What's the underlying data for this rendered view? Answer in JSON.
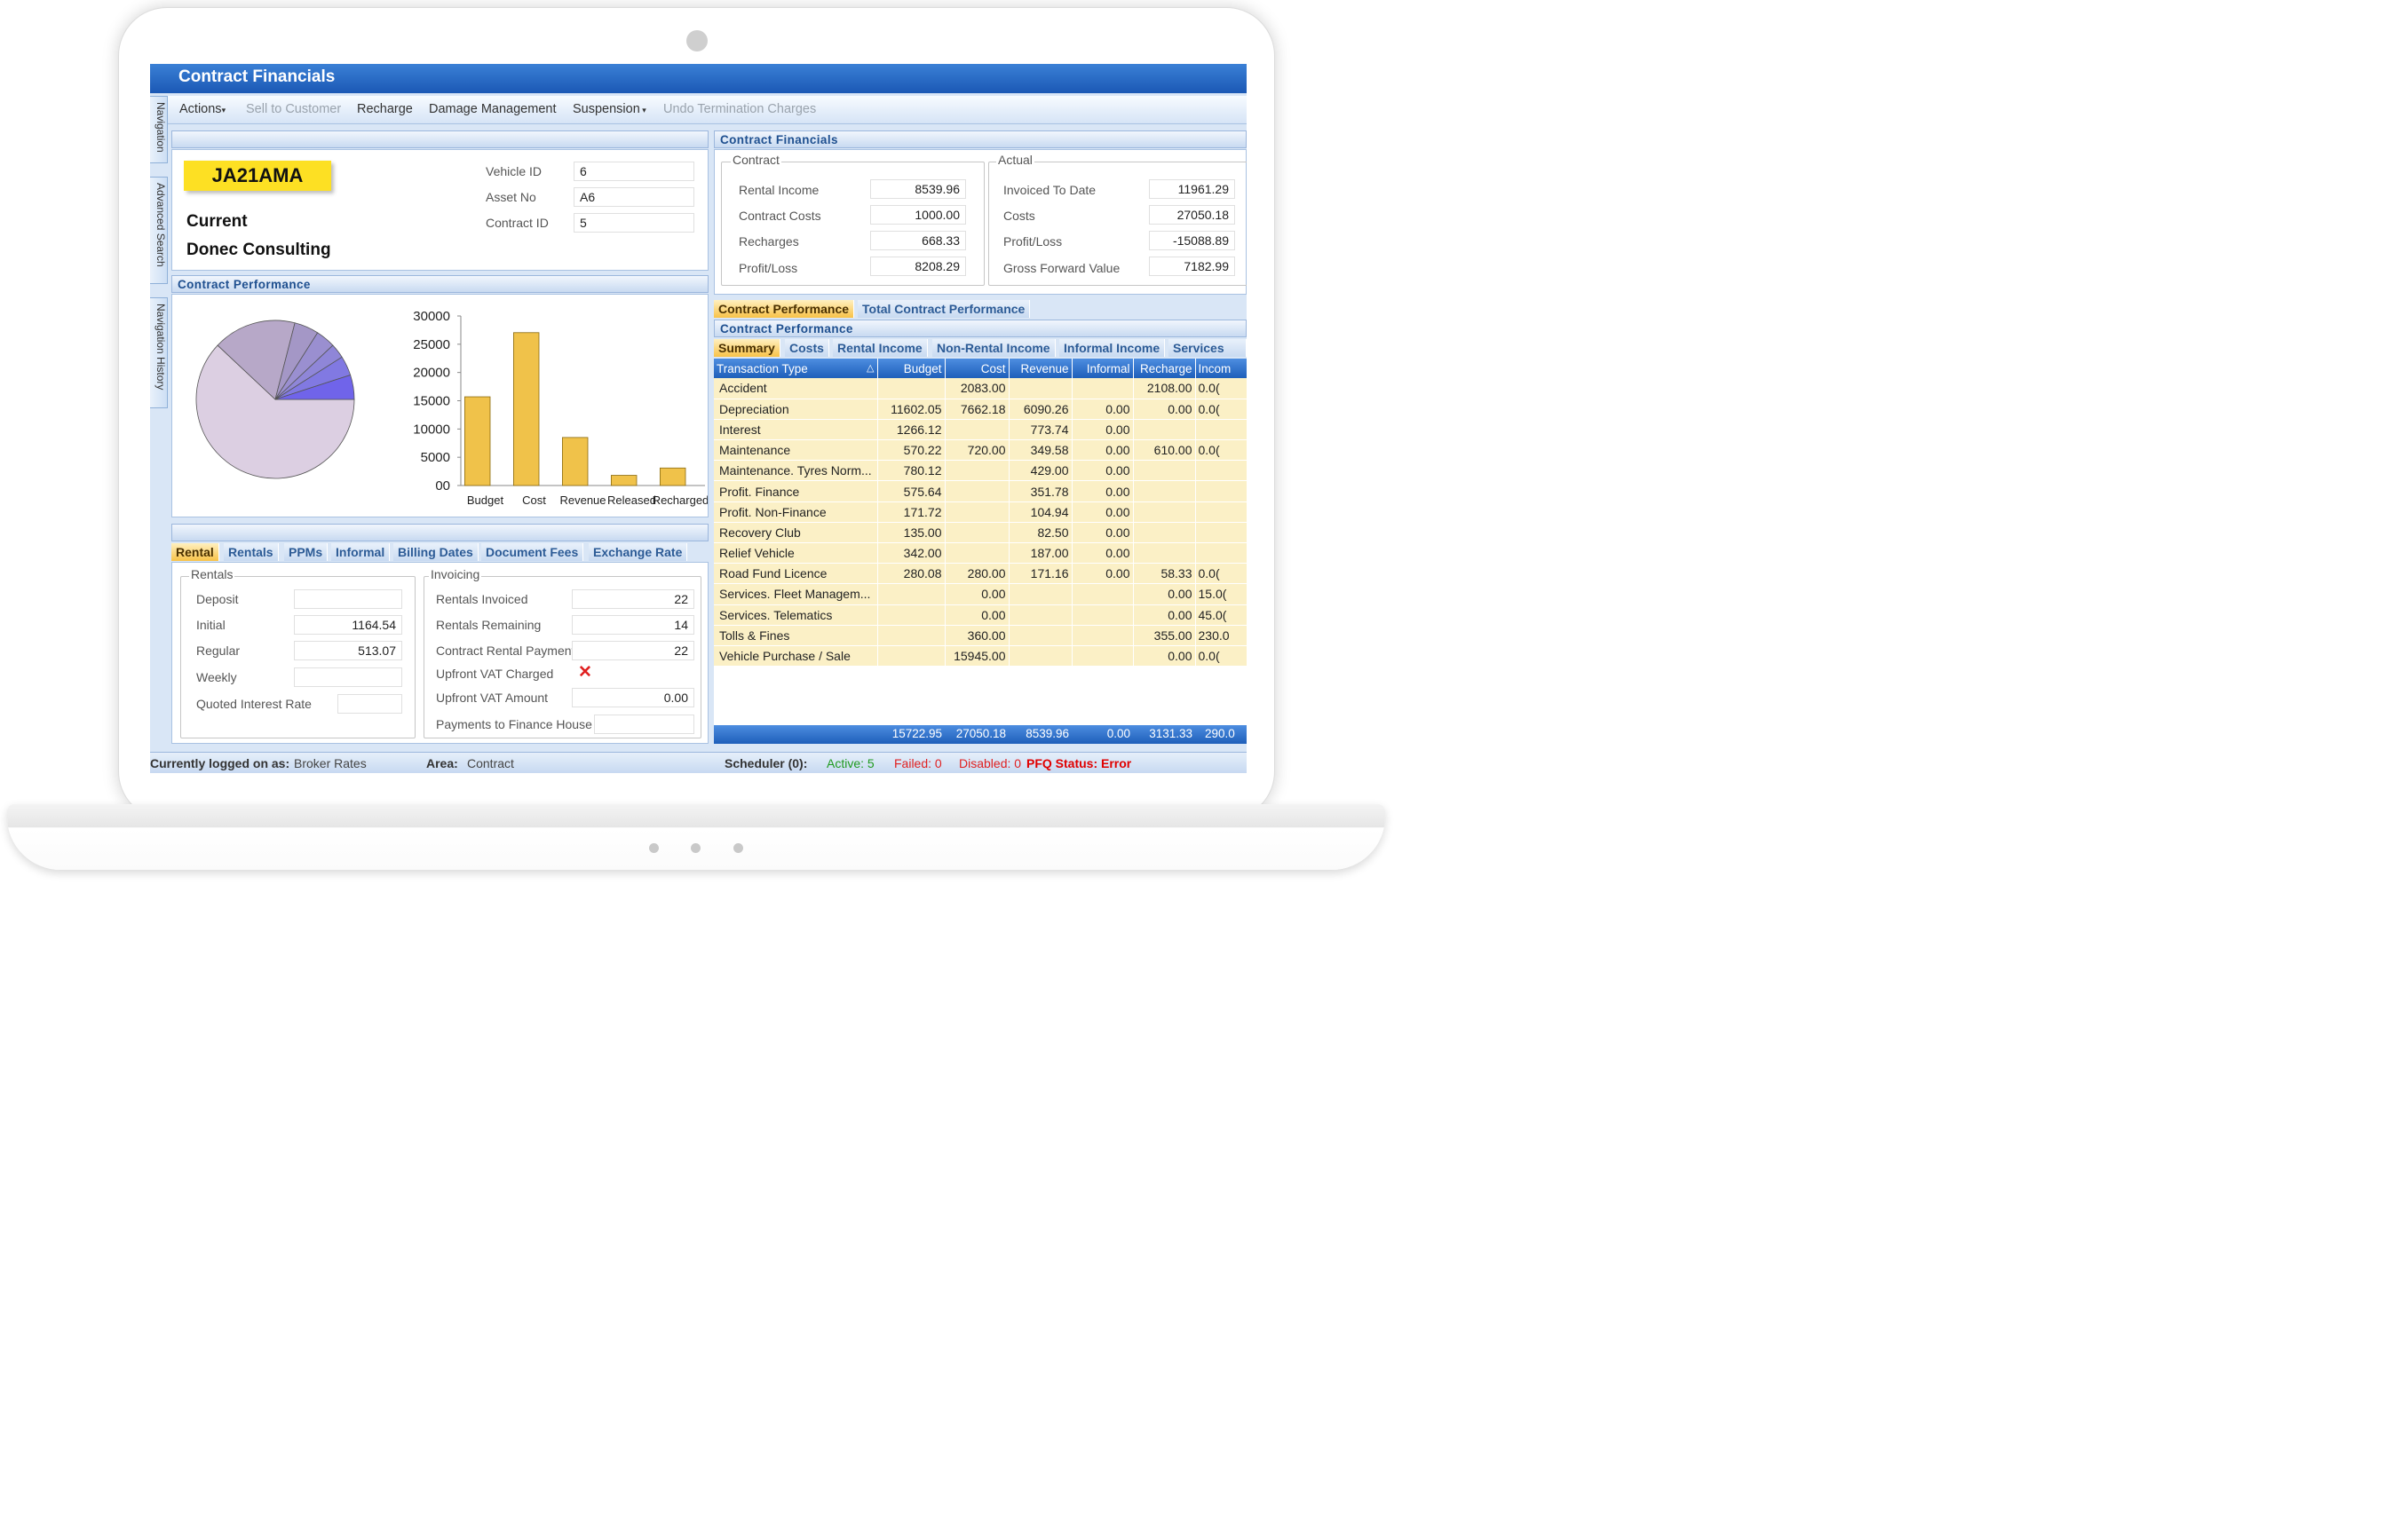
{
  "window": {
    "title": "Contract Financials"
  },
  "menu": {
    "actions": "Actions",
    "sell_to_customer": "Sell to Customer",
    "recharge": "Recharge",
    "damage_management": "Damage Management",
    "suspension": "Suspension",
    "undo_termination": "Undo Termination Charges"
  },
  "side_tabs": [
    "Navigation",
    "Advanced Search",
    "Navigation History"
  ],
  "vehicle": {
    "registration": "JA21AMA",
    "status": "Current",
    "customer": "Donec Consulting",
    "fields": [
      {
        "label": "Vehicle ID",
        "value": "6"
      },
      {
        "label": "Asset No",
        "value": "A6"
      },
      {
        "label": "Contract ID",
        "value": "5"
      }
    ]
  },
  "contract_financials": {
    "header": "Contract Financials",
    "contract": {
      "title": "Contract",
      "rows": [
        {
          "label": "Rental Income",
          "value": "8539.96"
        },
        {
          "label": "Contract Costs",
          "value": "1000.00"
        },
        {
          "label": "Recharges",
          "value": "668.33"
        },
        {
          "label": "Profit/Loss",
          "value": "8208.29"
        }
      ]
    },
    "actual": {
      "title": "Actual",
      "rows": [
        {
          "label": "Invoiced To Date",
          "value": "11961.29"
        },
        {
          "label": "Costs",
          "value": "27050.18"
        },
        {
          "label": "Profit/Loss",
          "value": "-15088.89"
        },
        {
          "label": "Gross Forward Value",
          "value": "7182.99"
        }
      ]
    }
  },
  "performance_panel": {
    "header": "Contract Performance"
  },
  "chart_data": [
    {
      "type": "pie",
      "values": [
        62,
        17,
        5,
        4,
        3,
        4,
        5
      ],
      "colors": [
        "#dccfe2",
        "#b7a8c8",
        "#a497c6",
        "#9a8fd0",
        "#8f86d8",
        "#8179e2",
        "#7064ea"
      ]
    },
    {
      "type": "bar",
      "categories": [
        "Budget",
        "Cost",
        "Revenue",
        "Released",
        "Recharged"
      ],
      "values": [
        15700,
        27050,
        8500,
        1800,
        3100
      ],
      "ylim": [
        0,
        30000
      ],
      "yticks": [
        "00",
        "5000",
        "10000",
        "15000",
        "20000",
        "25000",
        "30000"
      ],
      "color": "#f0c24a"
    }
  ],
  "rental_tabs": [
    "Rental",
    "Rentals",
    "PPMs",
    "Informal",
    "Billing Dates",
    "Document Fees",
    "Exchange Rate"
  ],
  "rentals_group": {
    "title": "Rentals",
    "rows": [
      {
        "label": "Deposit",
        "value": ""
      },
      {
        "label": "Initial",
        "value": "1164.54"
      },
      {
        "label": "Regular",
        "value": "513.07"
      },
      {
        "label": "Weekly",
        "value": ""
      },
      {
        "label": "Quoted Interest Rate",
        "value": ""
      }
    ]
  },
  "invoicing_group": {
    "title": "Invoicing",
    "rows": [
      {
        "label": "Rentals Invoiced",
        "value": "22"
      },
      {
        "label": "Rentals Remaining",
        "value": "14"
      },
      {
        "label": "Contract Rental Payment",
        "value": "22"
      },
      {
        "label": "Upfront VAT Charged",
        "value": ""
      },
      {
        "label": "Upfront VAT Amount",
        "value": "0.00"
      },
      {
        "label": "Payments to Finance House",
        "value": ""
      }
    ]
  },
  "perf_tabs": [
    "Contract Performance",
    "Total Contract Performance"
  ],
  "perf_subheader": "Contract Performance",
  "summary_tabs": [
    "Summary",
    "Costs",
    "Rental Income",
    "Non-Rental Income",
    "Informal Income",
    "Services"
  ],
  "grid": {
    "columns": [
      "Transaction Type",
      "Budget",
      "Cost",
      "Revenue",
      "Informal",
      "Recharge",
      "Incom"
    ],
    "rows": [
      [
        "Accident",
        "",
        "2083.00",
        "",
        "",
        "2108.00",
        "0.0("
      ],
      [
        "Depreciation",
        "11602.05",
        "7662.18",
        "6090.26",
        "0.00",
        "0.00",
        "0.0("
      ],
      [
        "Interest",
        "1266.12",
        "",
        "773.74",
        "0.00",
        "",
        ""
      ],
      [
        "Maintenance",
        "570.22",
        "720.00",
        "349.58",
        "0.00",
        "610.00",
        "0.0("
      ],
      [
        "Maintenance. Tyres Norm...",
        "780.12",
        "",
        "429.00",
        "0.00",
        "",
        ""
      ],
      [
        "Profit. Finance",
        "575.64",
        "",
        "351.78",
        "0.00",
        "",
        ""
      ],
      [
        "Profit. Non-Finance",
        "171.72",
        "",
        "104.94",
        "0.00",
        "",
        ""
      ],
      [
        "Recovery Club",
        "135.00",
        "",
        "82.50",
        "0.00",
        "",
        ""
      ],
      [
        "Relief Vehicle",
        "342.00",
        "",
        "187.00",
        "0.00",
        "",
        ""
      ],
      [
        "Road Fund Licence",
        "280.08",
        "280.00",
        "171.16",
        "0.00",
        "58.33",
        "0.0("
      ],
      [
        "Services. Fleet Managem...",
        "",
        "0.00",
        "",
        "",
        "0.00",
        "15.0("
      ],
      [
        "Services. Telematics",
        "",
        "0.00",
        "",
        "",
        "0.00",
        "45.0("
      ],
      [
        "Tolls & Fines",
        "",
        "360.00",
        "",
        "",
        "355.00",
        "230.0"
      ],
      [
        "Vehicle Purchase / Sale",
        "",
        "15945.00",
        "",
        "",
        "0.00",
        "0.0("
      ]
    ],
    "totals": [
      "15722.95",
      "27050.18",
      "8539.96",
      "0.00",
      "3131.33",
      "290.0"
    ]
  },
  "status": {
    "logged_label": "Currently logged on as:",
    "logged_value": "Broker Rates",
    "area_label": "Area:",
    "area_value": "Contract",
    "scheduler": "Scheduler (0):",
    "active": "Active: 5",
    "failed": "Failed: 0",
    "disabled": "Disabled: 0",
    "pfq": "PFQ Status: Error"
  }
}
